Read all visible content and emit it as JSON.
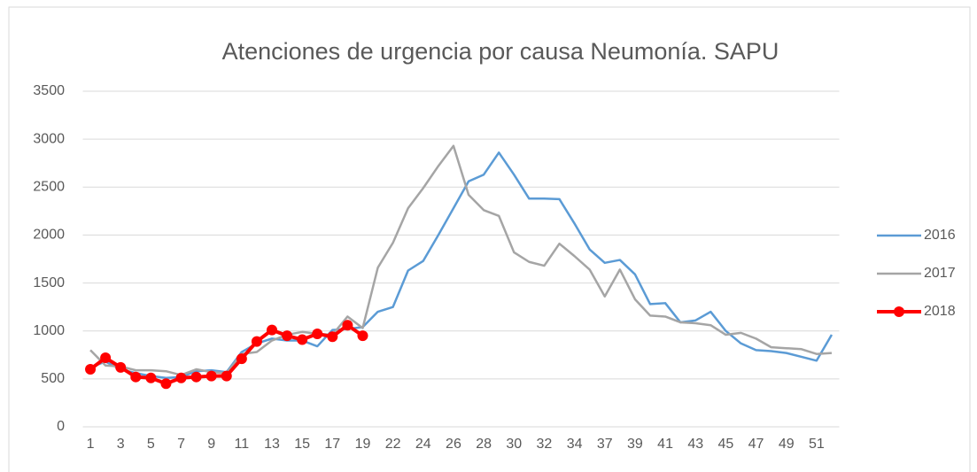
{
  "chart_data": {
    "type": "line",
    "title": "Atenciones de urgencia por causa Neumonía. SAPU",
    "categories": [
      1,
      null,
      3,
      null,
      5,
      null,
      7,
      null,
      9,
      null,
      11,
      null,
      13,
      null,
      15,
      null,
      17,
      null,
      19,
      null,
      22,
      null,
      24,
      null,
      26,
      null,
      28,
      null,
      30,
      null,
      32,
      null,
      34,
      null,
      37,
      null,
      39,
      null,
      41,
      null,
      43,
      null,
      45,
      null,
      47,
      null,
      49,
      null,
      51,
      null
    ],
    "series": [
      {
        "name": "2016",
        "color": "#5b9bd5",
        "markers": false,
        "values": [
          620,
          680,
          600,
          560,
          530,
          510,
          520,
          580,
          590,
          570,
          780,
          870,
          920,
          900,
          900,
          840,
          1010,
          1020,
          1040,
          1200,
          1250,
          1630,
          1730,
          2000,
          2280,
          2560,
          2630,
          2860,
          2630,
          2380,
          2380,
          2375,
          2120,
          1850,
          1710,
          1740,
          1590,
          1280,
          1290,
          1090,
          1110,
          1200,
          1000,
          870,
          800,
          790,
          770,
          730,
          690,
          960
        ]
      },
      {
        "name": "2017",
        "color": "#a5a5a5",
        "markers": false,
        "values": [
          800,
          640,
          630,
          590,
          590,
          580,
          540,
          600,
          570,
          560,
          760,
          780,
          900,
          960,
          990,
          970,
          960,
          1150,
          1030,
          1660,
          1920,
          2280,
          2490,
          2720,
          2930,
          2420,
          2260,
          2200,
          1820,
          1720,
          1680,
          1910,
          1780,
          1640,
          1360,
          1640,
          1330,
          1160,
          1150,
          1090,
          1080,
          1060,
          960,
          980,
          920,
          830,
          820,
          810,
          760,
          770
        ]
      },
      {
        "name": "2018",
        "color": "#ff0000",
        "markers": true,
        "values": [
          600,
          720,
          620,
          520,
          510,
          450,
          510,
          520,
          530,
          530,
          710,
          890,
          1010,
          950,
          910,
          970,
          940,
          1060,
          950,
          null,
          null,
          null,
          null,
          null,
          null,
          null,
          null,
          null,
          null,
          null,
          null,
          null,
          null,
          null,
          null,
          null,
          null,
          null,
          null,
          null,
          null,
          null,
          null,
          null,
          null,
          null,
          null,
          null,
          null,
          null
        ]
      }
    ],
    "ylim": [
      0,
      3500
    ],
    "yticks": [
      0,
      500,
      1000,
      1500,
      2000,
      2500,
      3000,
      3500
    ],
    "grid": true,
    "legend": "right"
  }
}
